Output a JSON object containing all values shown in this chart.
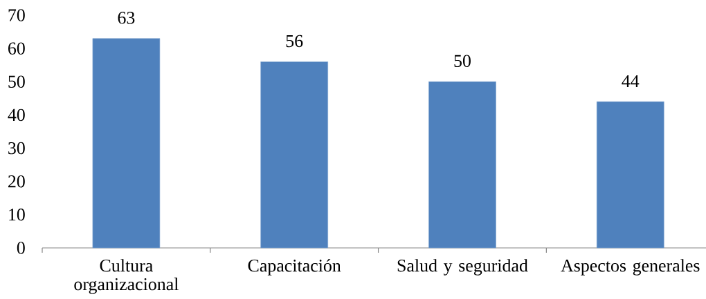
{
  "chart_data": {
    "type": "bar",
    "categories": [
      "Cultura organizacional",
      "Capacitación",
      "Salud y seguridad",
      "Aspectos generales"
    ],
    "values": [
      63,
      56,
      50,
      44
    ],
    "color": "#4f81bd",
    "ylim": [
      0,
      70
    ],
    "yticks": [
      0,
      10,
      20,
      30,
      40,
      50,
      60,
      70
    ],
    "data_labels": true
  }
}
